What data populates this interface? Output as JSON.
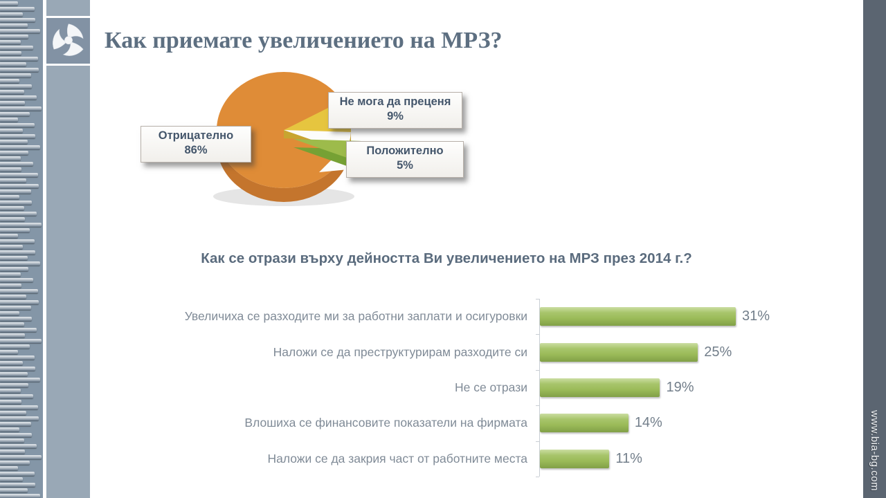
{
  "slide": {
    "title": "Как приемате увеличението на МРЗ?",
    "website": "www.bia-bg.com",
    "logo": "bia-hexagon-emblem"
  },
  "colors": {
    "pie_orange": "#DF8C37",
    "pie_yellow": "#E6C53F",
    "pie_green": "#9DBB4B",
    "bar_green": "#9BBB59",
    "title_text": "#5D6F81",
    "band_gray_blue": "#99A8B6",
    "right_column_dark": "#5B6571"
  },
  "chart_data": [
    {
      "type": "pie",
      "style": "3d-exploded",
      "labels": [
        "Отрицателно",
        "Не мога да преценя",
        "Положително"
      ],
      "values": [
        86,
        9,
        5
      ],
      "unit": "%",
      "colors": [
        "#DF8C37",
        "#E6C53F",
        "#9DBB4B"
      ],
      "callouts": [
        {
          "label": "Отрицателно",
          "value": "86%"
        },
        {
          "label": "Не мога да преценя",
          "value": "9%"
        },
        {
          "label": "Положително",
          "value": "5%"
        }
      ]
    },
    {
      "type": "bar",
      "orientation": "horizontal",
      "title": "Как се отрази върху дейността Ви увеличението на МРЗ през 2014 г.?",
      "categories": [
        "Увеличиха се разходите ми за работни заплати и осигуровки",
        "Наложи се да преструктурирам разходите си",
        "Не се отрази",
        "Влошиха се финансовите показатели на фирмата",
        "Наложи се да закрия част от работните места"
      ],
      "values": [
        31,
        25,
        19,
        14,
        11
      ],
      "value_labels": [
        "31%",
        "25%",
        "19%",
        "14%",
        "11%"
      ],
      "xlim": [
        0,
        35
      ],
      "bar_color": "#9BBB59",
      "grid": false,
      "legend": "none"
    }
  ]
}
